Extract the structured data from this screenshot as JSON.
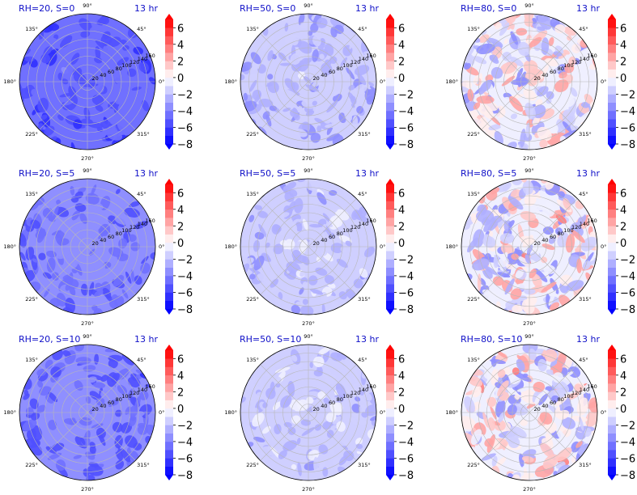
{
  "chart_data": {
    "type": "heatmap",
    "projection": "polar",
    "layout": "3x3 grid of polar filled-contour panels, each with its own vertical colorbar",
    "colormap": "bwr",
    "color_range": [
      -8,
      7
    ],
    "contour_levels": [
      -8,
      -7,
      -6,
      -5,
      -4,
      -3,
      -2,
      -1,
      0,
      1,
      2,
      3,
      4,
      5,
      6,
      7
    ],
    "colorbar": {
      "ticks": [
        "6",
        "4",
        "2",
        "0",
        "−2",
        "−4",
        "−6",
        "−8"
      ],
      "extend": "both"
    },
    "angle_ticks": [
      "45°",
      "90°",
      "135°",
      "180°",
      "225°",
      "270°",
      "315°",
      "0°"
    ],
    "radial_ticks": [
      "20",
      "40",
      "60",
      "80",
      "100",
      "120",
      "140",
      "160"
    ],
    "radial_label_angle_deg": 22.5,
    "rmax": 160,
    "grid": true,
    "colors": {
      "title": "#1010c8",
      "negative": "#0000ff",
      "positive": "#ff0000",
      "zero": "#ffffff"
    },
    "panels": [
      {
        "rh_label": "RH=20, S=0",
        "time_label": "13 hr",
        "rh": 20,
        "s": 0,
        "approx_mean": -4.5,
        "approx_spread": 1.0
      },
      {
        "rh_label": "RH=50, S=0",
        "time_label": "13 hr",
        "rh": 50,
        "s": 0,
        "approx_mean": -2.0,
        "approx_spread": 1.2
      },
      {
        "rh_label": "RH=80, S=0",
        "time_label": "13 hr",
        "rh": 80,
        "s": 0,
        "approx_mean": -0.5,
        "approx_spread": 3.0
      },
      {
        "rh_label": "RH=20, S=5",
        "time_label": "13 hr",
        "rh": 20,
        "s": 5,
        "approx_mean": -3.8,
        "approx_spread": 0.8
      },
      {
        "rh_label": "RH=50, S=5",
        "time_label": "13 hr",
        "rh": 50,
        "s": 5,
        "approx_mean": -1.5,
        "approx_spread": 1.2
      },
      {
        "rh_label": "RH=80, S=5",
        "time_label": "13 hr",
        "rh": 80,
        "s": 5,
        "approx_mean": -0.3,
        "approx_spread": 3.5
      },
      {
        "rh_label": "RH=20, S=10",
        "time_label": "13 hr",
        "rh": 20,
        "s": 10,
        "approx_mean": -4.0,
        "approx_spread": 1.0
      },
      {
        "rh_label": "RH=50, S=10",
        "time_label": "13 hr",
        "rh": 50,
        "s": 10,
        "approx_mean": -1.5,
        "approx_spread": 1.2
      },
      {
        "rh_label": "RH=80, S=10",
        "time_label": "13 hr",
        "rh": 80,
        "s": 10,
        "approx_mean": -0.3,
        "approx_spread": 3.5
      }
    ]
  }
}
